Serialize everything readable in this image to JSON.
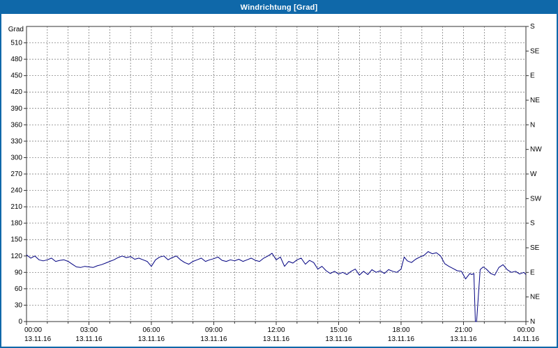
{
  "window": {
    "title": "Windrichtung [Grad]"
  },
  "colors": {
    "titlebar": "#0f68a9",
    "window_border": "#0f68a9",
    "grid": "#6e6e6e",
    "plot_border": "#333333",
    "line": "#000080",
    "text": "#000000"
  },
  "chart_data": {
    "type": "line",
    "title": "Windrichtung [Grad]",
    "grid": true,
    "legend": "none",
    "y_axis_left": {
      "label": "Grad",
      "min": 0,
      "max": 540,
      "tick_step": 30,
      "tick_labels": [
        "0",
        "30",
        "60",
        "90",
        "120",
        "150",
        "180",
        "210",
        "240",
        "270",
        "300",
        "330",
        "360",
        "390",
        "420",
        "450",
        "480",
        "510"
      ]
    },
    "y_axis_right": {
      "tick_step": 45,
      "labels_bottom_to_top": [
        "N",
        "NE",
        "E",
        "SE",
        "S",
        "SW",
        "W",
        "NW",
        "N",
        "NE",
        "E",
        "SE",
        "S"
      ]
    },
    "x_axis": {
      "min_hour": 0,
      "max_hour": 24,
      "minor_step_hours": 1,
      "major_step_hours": 3,
      "ticks": [
        {
          "hour": 0,
          "time": "00:00",
          "date": "13.11.16"
        },
        {
          "hour": 3,
          "time": "03:00",
          "date": "13.11.16"
        },
        {
          "hour": 6,
          "time": "06:00",
          "date": "13.11.16"
        },
        {
          "hour": 9,
          "time": "09:00",
          "date": "13.11.16"
        },
        {
          "hour": 12,
          "time": "12:00",
          "date": "13.11.16"
        },
        {
          "hour": 15,
          "time": "15:00",
          "date": "13.11.16"
        },
        {
          "hour": 18,
          "time": "18:00",
          "date": "13.11.16"
        },
        {
          "hour": 21,
          "time": "21:00",
          "date": "13.11.16"
        },
        {
          "hour": 24,
          "time": "00:00",
          "date": "14.11.16"
        }
      ]
    },
    "series": [
      {
        "name": "Windrichtung",
        "color": "#000080",
        "points": [
          [
            0,
            122
          ],
          [
            0.2,
            116
          ],
          [
            0.4,
            120
          ],
          [
            0.6,
            113
          ],
          [
            0.8,
            111
          ],
          [
            1,
            113
          ],
          [
            1.2,
            116
          ],
          [
            1.4,
            110
          ],
          [
            1.6,
            112
          ],
          [
            1.8,
            113
          ],
          [
            2,
            110
          ],
          [
            2.2,
            105
          ],
          [
            2.4,
            100
          ],
          [
            2.6,
            99
          ],
          [
            2.8,
            101
          ],
          [
            3,
            100
          ],
          [
            3.2,
            99
          ],
          [
            3.4,
            102
          ],
          [
            3.6,
            104
          ],
          [
            3.8,
            107
          ],
          [
            4,
            110
          ],
          [
            4.2,
            113
          ],
          [
            4.4,
            117
          ],
          [
            4.6,
            120
          ],
          [
            4.8,
            117
          ],
          [
            5,
            119
          ],
          [
            5.2,
            114
          ],
          [
            5.4,
            116
          ],
          [
            5.6,
            113
          ],
          [
            5.8,
            110
          ],
          [
            6,
            101
          ],
          [
            6.2,
            113
          ],
          [
            6.4,
            118
          ],
          [
            6.6,
            120
          ],
          [
            6.8,
            113
          ],
          [
            7,
            117
          ],
          [
            7.2,
            120
          ],
          [
            7.4,
            113
          ],
          [
            7.6,
            108
          ],
          [
            7.8,
            105
          ],
          [
            8,
            110
          ],
          [
            8.2,
            113
          ],
          [
            8.4,
            116
          ],
          [
            8.6,
            110
          ],
          [
            8.8,
            113
          ],
          [
            9,
            115
          ],
          [
            9.2,
            118
          ],
          [
            9.4,
            112
          ],
          [
            9.6,
            110
          ],
          [
            9.8,
            113
          ],
          [
            10,
            111
          ],
          [
            10.2,
            114
          ],
          [
            10.4,
            110
          ],
          [
            10.6,
            113
          ],
          [
            10.8,
            116
          ],
          [
            11,
            112
          ],
          [
            11.2,
            110
          ],
          [
            11.4,
            116
          ],
          [
            11.6,
            120
          ],
          [
            11.8,
            125
          ],
          [
            12,
            113
          ],
          [
            12.2,
            118
          ],
          [
            12.4,
            101
          ],
          [
            12.6,
            110
          ],
          [
            12.8,
            107
          ],
          [
            13,
            113
          ],
          [
            13.2,
            116
          ],
          [
            13.4,
            105
          ],
          [
            13.6,
            112
          ],
          [
            13.8,
            108
          ],
          [
            14,
            96
          ],
          [
            14.2,
            101
          ],
          [
            14.4,
            93
          ],
          [
            14.6,
            88
          ],
          [
            14.8,
            92
          ],
          [
            15,
            87
          ],
          [
            15.2,
            90
          ],
          [
            15.4,
            86
          ],
          [
            15.6,
            92
          ],
          [
            15.8,
            96
          ],
          [
            16,
            85
          ],
          [
            16.2,
            92
          ],
          [
            16.4,
            86
          ],
          [
            16.6,
            95
          ],
          [
            16.8,
            90
          ],
          [
            17,
            93
          ],
          [
            17.2,
            88
          ],
          [
            17.4,
            95
          ],
          [
            17.6,
            92
          ],
          [
            17.8,
            90
          ],
          [
            18,
            96
          ],
          [
            18.15,
            118
          ],
          [
            18.3,
            111
          ],
          [
            18.5,
            108
          ],
          [
            18.7,
            114
          ],
          [
            18.9,
            118
          ],
          [
            19.1,
            121
          ],
          [
            19.3,
            128
          ],
          [
            19.5,
            124
          ],
          [
            19.7,
            126
          ],
          [
            19.9,
            120
          ],
          [
            20.1,
            106
          ],
          [
            20.3,
            101
          ],
          [
            20.5,
            97
          ],
          [
            20.7,
            93
          ],
          [
            20.9,
            92
          ],
          [
            21.1,
            78
          ],
          [
            21.3,
            88
          ],
          [
            21.4,
            86
          ],
          [
            21.5,
            88
          ],
          [
            21.57,
            0
          ],
          [
            21.63,
            0
          ],
          [
            21.8,
            95
          ],
          [
            21.95,
            100
          ],
          [
            22.1,
            96
          ],
          [
            22.3,
            88
          ],
          [
            22.5,
            85
          ],
          [
            22.7,
            99
          ],
          [
            22.9,
            104
          ],
          [
            23.1,
            95
          ],
          [
            23.3,
            90
          ],
          [
            23.5,
            92
          ],
          [
            23.7,
            87
          ],
          [
            23.9,
            90
          ],
          [
            24,
            86
          ]
        ]
      }
    ]
  }
}
